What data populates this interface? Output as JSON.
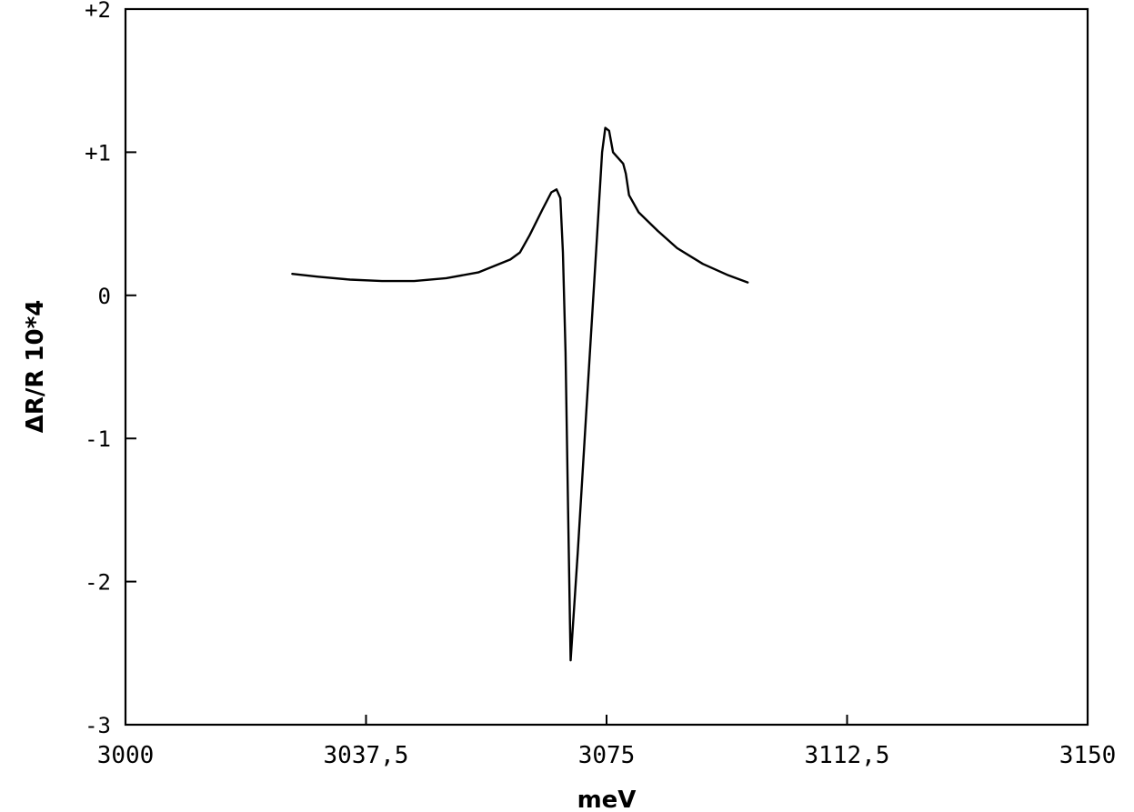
{
  "chart_data": {
    "type": "line",
    "title": "",
    "xlabel": "meV",
    "ylabel": "ΔR/R 10*4",
    "xlim": [
      3000,
      3150
    ],
    "ylim": [
      -3,
      2
    ],
    "x_ticks": [
      3000,
      3037.5,
      3075,
      3112.5,
      3150
    ],
    "x_tick_labels": [
      "3000",
      "3037,5",
      "3075",
      "3112,5",
      "3150"
    ],
    "y_ticks": [
      2,
      1,
      0,
      -1,
      -2,
      -3
    ],
    "y_tick_labels": [
      "+2",
      "+1",
      "0",
      "-1",
      "-2",
      "-3"
    ],
    "grid": false,
    "series": [
      {
        "points": [
          [
            3026.0,
            0.15
          ],
          [
            3030,
            0.13
          ],
          [
            3035,
            0.11
          ],
          [
            3040,
            0.1
          ],
          [
            3045,
            0.1
          ],
          [
            3050,
            0.12
          ],
          [
            3055,
            0.16
          ],
          [
            3060,
            0.25
          ],
          [
            3061.5,
            0.3
          ],
          [
            3063,
            0.42
          ],
          [
            3065,
            0.6
          ],
          [
            3066.4,
            0.72
          ],
          [
            3067.2,
            0.74
          ],
          [
            3067.8,
            0.68
          ],
          [
            3068.2,
            0.3
          ],
          [
            3068.6,
            -0.4
          ],
          [
            3069.0,
            -1.5
          ],
          [
            3069.3,
            -2.3
          ],
          [
            3069.4,
            -2.55
          ],
          [
            3070.5,
            -1.8
          ],
          [
            3072,
            -0.7
          ],
          [
            3073.5,
            0.4
          ],
          [
            3074.3,
            1.0
          ],
          [
            3074.8,
            1.17
          ],
          [
            3075.4,
            1.15
          ],
          [
            3076.0,
            1.0
          ],
          [
            3077.0,
            0.95
          ],
          [
            3077.6,
            0.92
          ],
          [
            3078.0,
            0.85
          ],
          [
            3078.5,
            0.7
          ],
          [
            3080,
            0.58
          ],
          [
            3083,
            0.45
          ],
          [
            3086,
            0.33
          ],
          [
            3090,
            0.22
          ],
          [
            3094,
            0.14
          ],
          [
            3097,
            0.09
          ]
        ]
      }
    ]
  }
}
